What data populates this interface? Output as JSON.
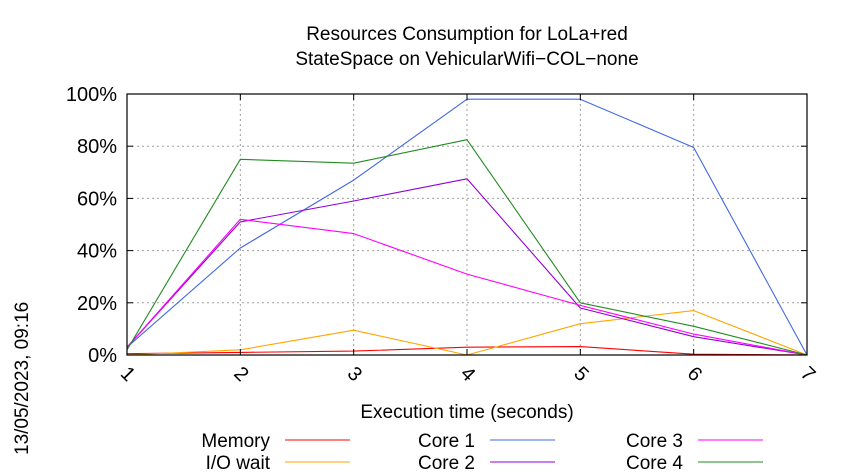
{
  "side_label": "13/05/2023, 09:16",
  "chart_data": {
    "type": "line",
    "title": "Resources Consumption for LoLa+red",
    "subtitle": "StateSpace on VehicularWifi−COL−none",
    "xlabel": "Execution time (seconds)",
    "ylabel": "",
    "x": [
      1,
      2,
      3,
      4,
      5,
      6,
      7
    ],
    "xlim": [
      1,
      7
    ],
    "ylim": [
      0,
      100
    ],
    "y_tick_values": [
      0,
      20,
      40,
      60,
      80,
      100
    ],
    "y_tick_labels": [
      "0%",
      "20%",
      "40%",
      "60%",
      "80%",
      "100%"
    ],
    "x_tick_labels": [
      "1",
      "2",
      "3",
      "4",
      "5",
      "6",
      "7"
    ],
    "grid": true,
    "legend_position": "bottom",
    "series": [
      {
        "name": "Memory",
        "color": "#ff0000",
        "values": [
          0.5,
          1,
          1.5,
          3,
          3.2,
          0.3,
          0
        ]
      },
      {
        "name": "I/O wait",
        "color": "#ffa500",
        "values": [
          0,
          2,
          9.5,
          0,
          12,
          17,
          0
        ]
      },
      {
        "name": "Core 1",
        "color": "#4169e1",
        "values": [
          3,
          41,
          67,
          98,
          98,
          79.5,
          0
        ]
      },
      {
        "name": "Core 2",
        "color": "#9400d3",
        "values": [
          3,
          51,
          59,
          67.5,
          18,
          7,
          0
        ]
      },
      {
        "name": "Core 3",
        "color": "#ff00ff",
        "values": [
          3,
          52,
          46.5,
          31,
          19,
          8,
          0
        ]
      },
      {
        "name": "Core 4",
        "color": "#228b22",
        "values": [
          2,
          75,
          73.5,
          82.5,
          20,
          11,
          0
        ]
      }
    ]
  }
}
